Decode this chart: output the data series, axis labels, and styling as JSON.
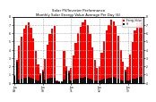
{
  "title": "Solar PV/Inverter Performance\nMonthly Solar Energy Value Average Per Day ($)",
  "bar_color": "#ff0000",
  "dark_color": "#111111",
  "background_color": "#ffffff",
  "grid_color": "#aaaaaa",
  "ylim": [
    0,
    8
  ],
  "yticks": [
    0,
    1,
    2,
    3,
    4,
    5,
    6,
    7,
    8
  ],
  "red_values": [
    0.9,
    2.8,
    4.5,
    5.6,
    6.5,
    7.0,
    7.3,
    6.7,
    5.4,
    3.8,
    2.2,
    1.2,
    1.6,
    2.9,
    4.6,
    5.9,
    6.6,
    6.9,
    0.3,
    0.2,
    0.2,
    3.8,
    2.0,
    1.5,
    1.8,
    3.3,
    4.8,
    6.0,
    6.8,
    7.3,
    7.6,
    7.0,
    5.9,
    4.3,
    2.8,
    1.8,
    2.0,
    3.6,
    5.0,
    6.3,
    7.0,
    7.6,
    7.4,
    6.9,
    5.7,
    4.0,
    2.6,
    1.6,
    1.9,
    3.4,
    4.9,
    6.3,
    7.3,
    7.6,
    7.3
  ],
  "dark_values": [
    0.8,
    2.5,
    0.4,
    0.5,
    0.6,
    0.6,
    0.7,
    0.6,
    0.5,
    0.4,
    0.3,
    0.9,
    1.4,
    0.4,
    0.5,
    0.6,
    0.6,
    0.6,
    0.2,
    0.15,
    0.15,
    0.4,
    1.5,
    1.3,
    0.3,
    0.4,
    0.5,
    0.5,
    0.6,
    0.6,
    0.7,
    0.6,
    0.5,
    0.4,
    0.3,
    0.3,
    0.3,
    0.4,
    0.5,
    0.5,
    0.6,
    0.6,
    0.7,
    0.6,
    0.5,
    0.4,
    0.3,
    1.4,
    0.3,
    0.4,
    0.5,
    0.5,
    0.6,
    0.7,
    0.7
  ],
  "categories": [
    "Jan\n09",
    "Feb\n09",
    "Mar\n09",
    "Apr\n09",
    "May\n09",
    "Jun\n09",
    "Jul\n09",
    "Aug\n09",
    "Sep\n09",
    "Oct\n09",
    "Nov\n09",
    "Dec\n09",
    "Jan\n10",
    "Feb\n10",
    "Mar\n10",
    "Apr\n10",
    "May\n10",
    "Jun\n10",
    "Jul\n10",
    "Aug\n10",
    "Sep\n10",
    "Oct\n10",
    "Nov\n10",
    "Dec\n10",
    "Jan\n11",
    "Feb\n11",
    "Mar\n11",
    "Apr\n11",
    "May\n11",
    "Jun\n11",
    "Jul\n11",
    "Aug\n11",
    "Sep\n11",
    "Oct\n11",
    "Nov\n11",
    "Dec\n11",
    "Jan\n12",
    "Feb\n12",
    "Mar\n12",
    "Apr\n12",
    "May\n12",
    "Jun\n12",
    "Jul\n12",
    "Aug\n12",
    "Sep\n12",
    "Oct\n12",
    "Nov\n12",
    "Dec\n12",
    "Jan\n13",
    "Feb\n13",
    "Mar\n13",
    "Apr\n13",
    "May\n13",
    "Jun\n13",
    "Jul\n13"
  ],
  "legend": [
    {
      "label": "Energy Value",
      "color": "#ff0000"
    },
    {
      "label": "Hi",
      "color": "#111111"
    }
  ]
}
